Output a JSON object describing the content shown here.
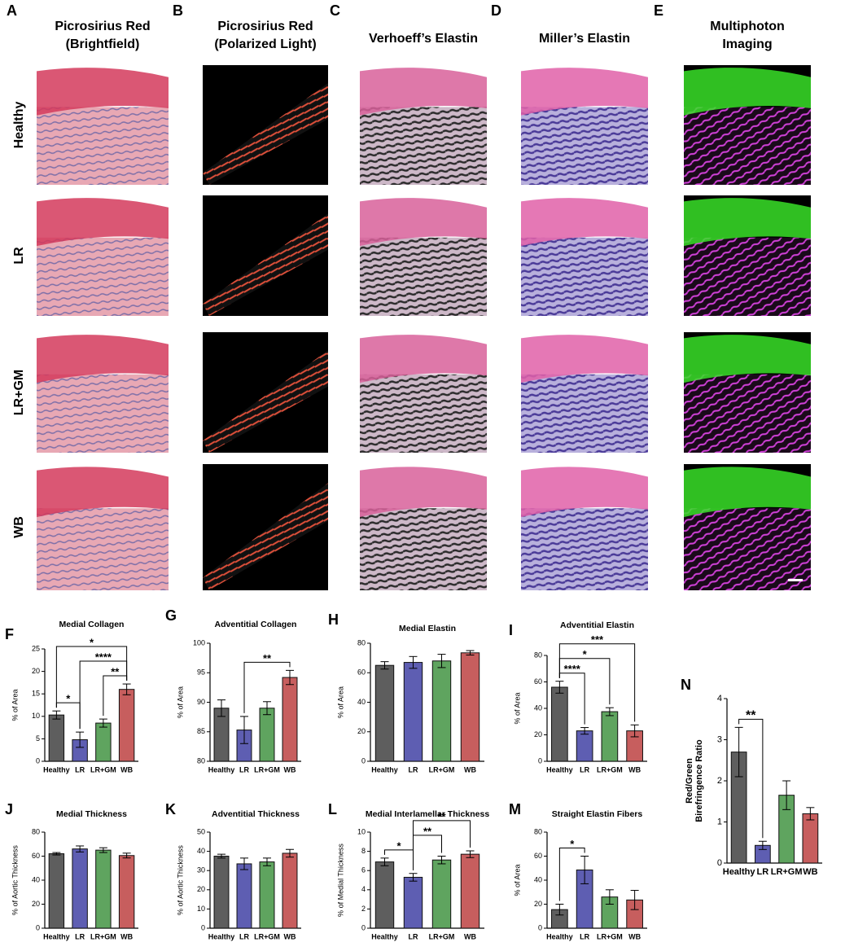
{
  "image_panels": {
    "columns": [
      {
        "letter": "A",
        "title": [
          "Picrosirius Red",
          "(Brightfield)"
        ]
      },
      {
        "letter": "B",
        "title": [
          "Picrosirius Red",
          "(Polarized Light)"
        ]
      },
      {
        "letter": "C",
        "title": [
          "Verhoeff’s Elastin"
        ]
      },
      {
        "letter": "D",
        "title": [
          "Miller’s Elastin"
        ]
      },
      {
        "letter": "E",
        "title": [
          "Multiphoton",
          "Imaging"
        ]
      }
    ],
    "rows": [
      "Healthy",
      "LR",
      "LR+GM",
      "WB"
    ]
  },
  "chart_data": [
    {
      "type": "bar",
      "panel": "F",
      "title": "Medial Collagen",
      "ylabel": "% of Area",
      "categories": [
        "Healthy",
        "LR",
        "LR+GM",
        "WB"
      ],
      "colors": [
        "#4d4d4d",
        "#4c4caa",
        "#4e9a4e",
        "#c14c4c"
      ],
      "values": [
        10.3,
        4.8,
        8.5,
        16
      ],
      "errors": [
        0.9,
        1.7,
        0.9,
        1.2
      ],
      "ylim": [
        0,
        25
      ],
      "yticks": [
        0,
        5,
        10,
        15,
        20,
        25
      ],
      "annotations": [
        {
          "text": "*",
          "between": [
            "Healthy",
            "LR"
          ]
        },
        {
          "text": "**",
          "between": [
            "LR+GM",
            "WB"
          ]
        },
        {
          "text": "****",
          "between": [
            "LR",
            "WB"
          ]
        },
        {
          "text": "*",
          "between": [
            "Healthy",
            "WB"
          ]
        }
      ]
    },
    {
      "type": "bar",
      "panel": "G",
      "title": "Adventitial Collagen",
      "ylabel": "% of Area",
      "categories": [
        "Healthy",
        "LR",
        "LR+GM",
        "WB"
      ],
      "colors": [
        "#4d4d4d",
        "#4c4caa",
        "#4e9a4e",
        "#c14c4c"
      ],
      "values": [
        89,
        85.3,
        89,
        94.2
      ],
      "errors": [
        1.4,
        2.3,
        1.1,
        1.2
      ],
      "ylim": [
        80,
        100
      ],
      "yticks": [
        80,
        85,
        90,
        95,
        100
      ],
      "annotations": [
        {
          "text": "**",
          "between": [
            "LR",
            "WB"
          ]
        }
      ]
    },
    {
      "type": "bar",
      "panel": "H",
      "title": "Medial Elastin",
      "ylabel": "% of Area",
      "categories": [
        "Healthy",
        "LR",
        "LR+GM",
        "WB"
      ],
      "colors": [
        "#4d4d4d",
        "#4c4caa",
        "#4e9a4e",
        "#c14c4c"
      ],
      "values": [
        65,
        67,
        68,
        73.5
      ],
      "errors": [
        2.5,
        4,
        4.5,
        1.5
      ],
      "ylim": [
        0,
        80
      ],
      "yticks": [
        0,
        20,
        40,
        60,
        80
      ],
      "annotations": []
    },
    {
      "type": "bar",
      "panel": "I",
      "title": "Adventitial Elastin",
      "ylabel": "% of Area",
      "categories": [
        "Healthy",
        "LR",
        "LR+GM",
        "WB"
      ],
      "colors": [
        "#4d4d4d",
        "#4c4caa",
        "#4e9a4e",
        "#c14c4c"
      ],
      "values": [
        56,
        23,
        37.5,
        23
      ],
      "errors": [
        4.5,
        2.5,
        3,
        4.5
      ],
      "ylim": [
        0,
        80
      ],
      "yticks": [
        0,
        20,
        40,
        60,
        80
      ],
      "annotations": [
        {
          "text": "****",
          "between": [
            "Healthy",
            "LR"
          ]
        },
        {
          "text": "*",
          "between": [
            "Healthy",
            "LR+GM"
          ]
        },
        {
          "text": "***",
          "between": [
            "Healthy",
            "WB"
          ]
        }
      ]
    },
    {
      "type": "bar",
      "panel": "J",
      "title": "Medial Thickness",
      "ylabel": "% of Aortic Thickness",
      "categories": [
        "Healthy",
        "LR",
        "LR+GM",
        "WB"
      ],
      "colors": [
        "#4d4d4d",
        "#4c4caa",
        "#4e9a4e",
        "#c14c4c"
      ],
      "values": [
        62,
        66,
        65,
        60.5
      ],
      "errors": [
        1,
        2.5,
        2,
        2
      ],
      "ylim": [
        0,
        80
      ],
      "yticks": [
        0,
        20,
        40,
        60,
        80
      ],
      "annotations": []
    },
    {
      "type": "bar",
      "panel": "K",
      "title": "Adventitial Thickness",
      "ylabel": "% of Aortic Thickness",
      "categories": [
        "Healthy",
        "LR",
        "LR+GM",
        "WB"
      ],
      "colors": [
        "#4d4d4d",
        "#4c4caa",
        "#4e9a4e",
        "#c14c4c"
      ],
      "values": [
        37.5,
        33.5,
        34.5,
        39
      ],
      "errors": [
        1,
        3,
        2,
        2
      ],
      "ylim": [
        0,
        50
      ],
      "yticks": [
        0,
        10,
        20,
        30,
        40,
        50
      ],
      "annotations": []
    },
    {
      "type": "bar",
      "panel": "L",
      "title": "Medial Interlamellar Thickness",
      "ylabel": "% of Medial Thickness",
      "categories": [
        "Healthy",
        "LR",
        "LR+GM",
        "WB"
      ],
      "colors": [
        "#4d4d4d",
        "#4c4caa",
        "#4e9a4e",
        "#c14c4c"
      ],
      "values": [
        6.9,
        5.3,
        7.1,
        7.7
      ],
      "errors": [
        0.4,
        0.4,
        0.4,
        0.35
      ],
      "ylim": [
        0,
        10
      ],
      "yticks": [
        0,
        2,
        4,
        6,
        8,
        10
      ],
      "annotations": [
        {
          "text": "*",
          "between": [
            "Healthy",
            "LR"
          ]
        },
        {
          "text": "**",
          "between": [
            "LR",
            "LR+GM"
          ]
        },
        {
          "text": "**",
          "between": [
            "LR",
            "WB"
          ]
        }
      ]
    },
    {
      "type": "bar",
      "panel": "M",
      "title": "Straight Elastin Fibers",
      "ylabel": "% of Area",
      "categories": [
        "Healthy",
        "LR",
        "LR+GM",
        "WB"
      ],
      "colors": [
        "#4d4d4d",
        "#4c4caa",
        "#4e9a4e",
        "#c14c4c"
      ],
      "values": [
        15.5,
        48.5,
        26,
        23.5
      ],
      "errors": [
        4.5,
        11.5,
        6,
        8
      ],
      "ylim": [
        0,
        80
      ],
      "yticks": [
        0,
        20,
        40,
        60,
        80
      ],
      "annotations": [
        {
          "text": "*",
          "between": [
            "Healthy",
            "LR"
          ]
        }
      ]
    },
    {
      "type": "bar",
      "panel": "N",
      "ylabel": [
        "Red/Green",
        "Birefringence Ratio"
      ],
      "categories": [
        "Healthy",
        "LR",
        "LR+GM",
        "WB"
      ],
      "colors": [
        "#4d4d4d",
        "#4c4caa",
        "#4e9a4e",
        "#c14c4c"
      ],
      "values": [
        2.7,
        0.43,
        1.65,
        1.2
      ],
      "errors": [
        0.6,
        0.1,
        0.35,
        0.15
      ],
      "ylim": [
        0,
        4
      ],
      "yticks": [
        0,
        1,
        2,
        3,
        4
      ],
      "annotations": [
        {
          "text": "**",
          "between": [
            "Healthy",
            "LR"
          ]
        }
      ]
    }
  ]
}
